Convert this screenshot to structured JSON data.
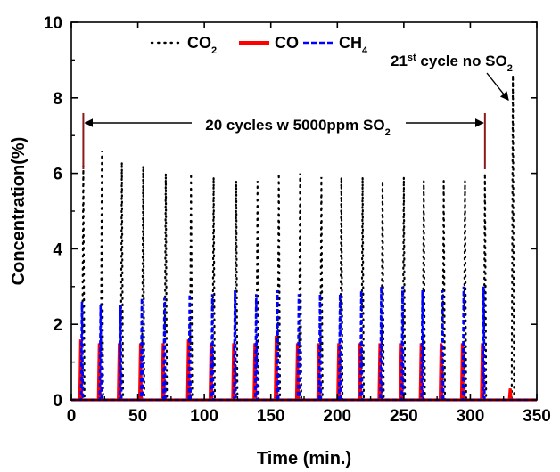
{
  "chart_data": {
    "type": "line",
    "xlabel": "Time (min.)",
    "ylabel": "Concentration(%)",
    "xlim": [
      0,
      350
    ],
    "ylim": [
      0,
      10
    ],
    "xticks": [
      "0",
      "50",
      "100",
      "150",
      "200",
      "250",
      "300",
      "350"
    ],
    "yticks": [
      "0",
      "2",
      "4",
      "6",
      "8",
      "10"
    ],
    "grid": false,
    "legend": {
      "placement": "top-center",
      "entries": [
        {
          "key": "co2",
          "base": "CO",
          "sub": "2",
          "style": "dotted",
          "color": "#000000"
        },
        {
          "key": "co",
          "base": "CO",
          "sub": "",
          "style": "solid",
          "color": "#ff0000"
        },
        {
          "key": "ch4",
          "base": "CH",
          "sub": "4",
          "style": "dashed",
          "color": "#0000ff"
        }
      ]
    },
    "series": [
      {
        "key": "co2",
        "cycle_times": [
          9,
          23,
          38,
          54,
          71,
          90,
          107,
          124,
          140,
          156,
          172,
          188,
          203,
          219,
          234,
          250,
          265,
          280,
          296,
          311,
          332
        ],
        "peaks": [
          6.2,
          6.6,
          6.3,
          6.2,
          6.0,
          6.0,
          5.9,
          5.8,
          5.8,
          6.0,
          6.0,
          5.9,
          5.9,
          5.9,
          5.8,
          5.9,
          5.8,
          5.8,
          5.8,
          6.0,
          8.6
        ]
      },
      {
        "key": "co",
        "cycle_times": [
          7,
          21,
          36,
          52,
          69,
          88,
          105,
          122,
          138,
          154,
          170,
          186,
          201,
          217,
          232,
          248,
          263,
          278,
          294,
          309,
          330
        ],
        "peaks": [
          1.6,
          1.5,
          1.5,
          1.5,
          1.5,
          1.6,
          1.5,
          1.5,
          1.5,
          1.7,
          1.5,
          1.5,
          1.5,
          1.5,
          1.5,
          1.5,
          1.5,
          1.5,
          1.5,
          1.5,
          0.3
        ]
      },
      {
        "key": "ch4",
        "cycle_times": [
          8,
          22,
          37,
          53,
          70,
          89,
          106,
          123,
          139,
          155,
          171,
          187,
          202,
          218,
          233,
          249,
          264,
          279,
          295,
          310
        ],
        "peaks": [
          2.6,
          2.5,
          2.5,
          2.7,
          2.7,
          2.8,
          2.8,
          2.9,
          2.8,
          2.9,
          2.8,
          2.8,
          2.8,
          2.9,
          3.0,
          3.0,
          2.9,
          2.9,
          3.0,
          3.0
        ]
      }
    ],
    "annotations": {
      "span": {
        "x_start": 9,
        "x_end": 311,
        "y_marker": 7.6,
        "y_arrow": 7.4
      },
      "span_label": {
        "text": "20 cycles w 5000ppm SO",
        "sub": "2"
      },
      "arrow_label": {
        "pre": "21",
        "sup": "st",
        "text": " cycle no SO",
        "sub": "2",
        "point_to": [
          330,
          7.8
        ]
      }
    }
  }
}
